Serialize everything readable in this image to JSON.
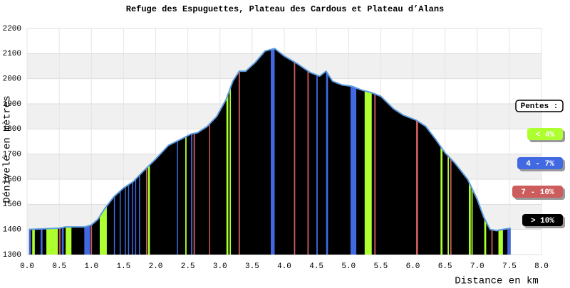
{
  "chart_data": {
    "type": "elevation-profile",
    "title": "Refuge des Espuguettes, Plateau des Cardous et Plateau d’Alans",
    "y_label": "Dénivelé en mètres",
    "x_label": "Distance en km",
    "xlim": [
      0,
      8
    ],
    "ylim": [
      1300,
      2200
    ],
    "xticks": [
      {
        "value": 0,
        "label": "0.0"
      },
      0.5,
      {
        "value": 1,
        "label": "1.0"
      },
      1.5,
      {
        "value": 2,
        "label": "2.0"
      },
      2.5,
      {
        "value": 3,
        "label": "3.0"
      },
      3.5,
      {
        "value": 4,
        "label": "4.0"
      },
      4.5,
      {
        "value": 5,
        "label": "5.0"
      },
      5.5,
      {
        "value": 6,
        "label": "6.0"
      },
      6.5,
      {
        "value": 7,
        "label": "7.0"
      },
      7.5,
      {
        "value": 8,
        "label": "8.0"
      }
    ],
    "yticks": [
      1300,
      1400,
      1500,
      1600,
      1700,
      1800,
      1900,
      2000,
      2100,
      2200
    ],
    "grid": true,
    "line_color": "#5a9be0",
    "fill_color": "#000000",
    "x": [
      0.03,
      0.3,
      0.5,
      0.6,
      0.7,
      0.9,
      1.0,
      1.1,
      1.2,
      1.35,
      1.5,
      1.65,
      1.8,
      2.0,
      2.2,
      2.4,
      2.55,
      2.65,
      2.8,
      2.95,
      3.1,
      3.2,
      3.3,
      3.4,
      3.55,
      3.7,
      3.85,
      4.0,
      4.2,
      4.4,
      4.55,
      4.65,
      4.75,
      4.9,
      5.05,
      5.2,
      5.35,
      5.5,
      5.7,
      5.85,
      6.05,
      6.2,
      6.35,
      6.5,
      6.65,
      6.85,
      7.0,
      7.1,
      7.2,
      7.3,
      7.4,
      7.52
    ],
    "values": [
      1400,
      1403,
      1405,
      1410,
      1410,
      1410,
      1418,
      1440,
      1480,
      1530,
      1565,
      1590,
      1630,
      1680,
      1735,
      1760,
      1780,
      1785,
      1810,
      1850,
      1920,
      1990,
      2030,
      2030,
      2065,
      2110,
      2120,
      2090,
      2060,
      2025,
      2010,
      2030,
      1990,
      1975,
      1970,
      1955,
      1945,
      1930,
      1880,
      1855,
      1835,
      1810,
      1760,
      1705,
      1665,
      1600,
      1520,
      1450,
      1400,
      1395,
      1400,
      1405
    ],
    "legend": {
      "title": "Pentes :",
      "items": [
        {
          "label": "< 4%",
          "color": "#adff2f"
        },
        {
          "label": "4 - 7%",
          "color": "#4169e1"
        },
        {
          "label": "7 - 10%",
          "color": "#cd5c5c"
        },
        {
          "label": "> 10%",
          "color": "#000000"
        }
      ]
    },
    "stripes": [
      {
        "x0": 0.08,
        "x1": 0.12,
        "color": "#adff2f"
      },
      {
        "x0": 0.3,
        "x1": 0.48,
        "color": "#adff2f"
      },
      {
        "x0": 0.6,
        "x1": 0.69,
        "color": "#adff2f"
      },
      {
        "x0": 1.13,
        "x1": 1.24,
        "color": "#adff2f"
      },
      {
        "x0": 1.88,
        "x1": 1.91,
        "color": "#adff2f"
      },
      {
        "x0": 2.46,
        "x1": 2.48,
        "color": "#adff2f"
      },
      {
        "x0": 3.1,
        "x1": 3.13,
        "color": "#adff2f"
      },
      {
        "x0": 3.15,
        "x1": 3.17,
        "color": "#adff2f"
      },
      {
        "x0": 5.25,
        "x1": 5.36,
        "color": "#adff2f"
      },
      {
        "x0": 6.43,
        "x1": 6.46,
        "color": "#adff2f"
      },
      {
        "x0": 6.54,
        "x1": 6.56,
        "color": "#adff2f"
      },
      {
        "x0": 6.87,
        "x1": 6.9,
        "color": "#adff2f"
      },
      {
        "x0": 6.91,
        "x1": 6.93,
        "color": "#adff2f"
      },
      {
        "x0": 7.11,
        "x1": 7.14,
        "color": "#adff2f"
      },
      {
        "x0": 7.33,
        "x1": 7.4,
        "color": "#adff2f"
      },
      {
        "x0": 0.03,
        "x1": 0.06,
        "color": "#4169e1"
      },
      {
        "x0": 0.21,
        "x1": 0.24,
        "color": "#4169e1"
      },
      {
        "x0": 0.54,
        "x1": 0.57,
        "color": "#4169e1"
      },
      {
        "x0": 0.89,
        "x1": 0.98,
        "color": "#4169e1"
      },
      {
        "x0": 1.35,
        "x1": 1.36,
        "color": "#4169e1"
      },
      {
        "x0": 1.44,
        "x1": 1.45,
        "color": "#4169e1"
      },
      {
        "x0": 1.52,
        "x1": 1.53,
        "color": "#4169e1"
      },
      {
        "x0": 1.57,
        "x1": 1.58,
        "color": "#4169e1"
      },
      {
        "x0": 1.63,
        "x1": 1.64,
        "color": "#4169e1"
      },
      {
        "x0": 1.68,
        "x1": 1.69,
        "color": "#4169e1"
      },
      {
        "x0": 1.74,
        "x1": 1.75,
        "color": "#4169e1"
      },
      {
        "x0": 2.33,
        "x1": 2.34,
        "color": "#4169e1"
      },
      {
        "x0": 2.55,
        "x1": 2.57,
        "color": "#4169e1"
      },
      {
        "x0": 3.79,
        "x1": 3.85,
        "color": "#4169e1"
      },
      {
        "x0": 4.5,
        "x1": 4.52,
        "color": "#4169e1"
      },
      {
        "x0": 4.65,
        "x1": 4.68,
        "color": "#4169e1"
      },
      {
        "x0": 5.03,
        "x1": 5.12,
        "color": "#4169e1"
      },
      {
        "x0": 7.47,
        "x1": 7.52,
        "color": "#4169e1"
      },
      {
        "x0": 0.5,
        "x1": 0.52,
        "color": "#cd5c5c"
      },
      {
        "x0": 0.99,
        "x1": 1.01,
        "color": "#cd5c5c"
      },
      {
        "x0": 1.85,
        "x1": 1.86,
        "color": "#cd5c5c"
      },
      {
        "x0": 2.59,
        "x1": 2.61,
        "color": "#cd5c5c"
      },
      {
        "x0": 2.83,
        "x1": 2.84,
        "color": "#cd5c5c"
      },
      {
        "x0": 3.29,
        "x1": 3.31,
        "color": "#cd5c5c"
      },
      {
        "x0": 4.15,
        "x1": 4.17,
        "color": "#cd5c5c"
      },
      {
        "x0": 4.36,
        "x1": 4.38,
        "color": "#cd5c5c"
      },
      {
        "x0": 5.4,
        "x1": 5.42,
        "color": "#cd5c5c"
      },
      {
        "x0": 6.05,
        "x1": 6.08,
        "color": "#cd5c5c"
      },
      {
        "x0": 6.58,
        "x1": 6.6,
        "color": "#cd5c5c"
      },
      {
        "x0": 7.22,
        "x1": 7.24,
        "color": "#cd5c5c"
      }
    ]
  }
}
